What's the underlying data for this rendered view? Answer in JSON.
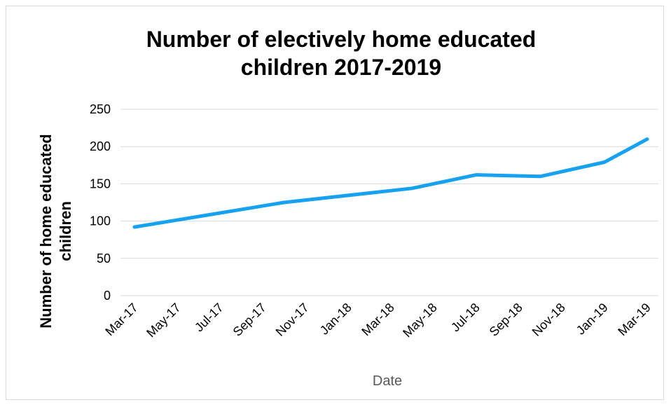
{
  "chart_data": {
    "type": "line",
    "title_lines": [
      "Number of electively home educated",
      "children 2017-2019"
    ],
    "title": "Number of electively home educated children 2017-2019",
    "xlabel": "Date",
    "ylabel_lines": [
      "Number of home educated",
      "children"
    ],
    "ylabel": "Number of home educated children",
    "ylim": [
      0,
      250
    ],
    "yticks": [
      0,
      50,
      100,
      150,
      200,
      250
    ],
    "categories": [
      "Mar-17",
      "May-17",
      "Jul-17",
      "Sep-17",
      "Nov-17",
      "Jan-18",
      "Mar-18",
      "May-18",
      "Jul-18",
      "Sep-18",
      "Nov-18",
      "Jan-19",
      "Mar-19"
    ],
    "x": [
      "2017-03",
      "2017-10",
      "2018-04",
      "2018-07",
      "2018-10",
      "2019-01",
      "2019-03"
    ],
    "values": [
      92,
      125,
      144,
      162,
      160,
      179,
      210
    ],
    "grid": true,
    "legend": "none",
    "line_color": "#16a2f0"
  }
}
